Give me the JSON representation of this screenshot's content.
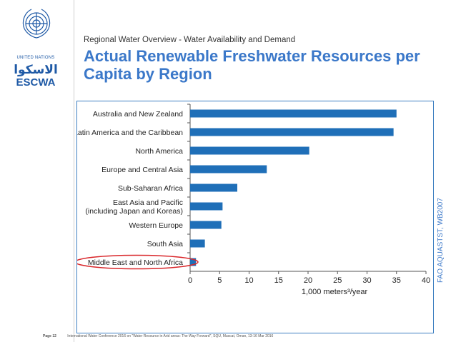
{
  "org": {
    "un_label": "UNITED NATIONS",
    "arabic_name": "الاسكوا",
    "name": "ESCWA"
  },
  "header": {
    "subtitle": "Regional Water Overview - Water Availability and Demand",
    "title": "Actual Renewable Freshwater Resources per Capita by Region"
  },
  "source": "FAO AQUASTST, WB2007",
  "footer": {
    "page": "Page 12",
    "text": "International Water Conference 2016 on \"Water Resource in Arid areas: The Way Forward\", SQU, Muscat, Oman, 13-16 Mar 2016"
  },
  "colors": {
    "bar": "#1f6fb8",
    "accent": "#3b78c9",
    "highlight": "#d9262a"
  },
  "chart_data": {
    "type": "bar",
    "orientation": "horizontal",
    "categories": [
      "Australia and New Zealand",
      "Latin America and the Caribbean",
      "North America",
      "Europe and Central Asia",
      "Sub-Saharan Africa",
      "East Asia and Pacific (including Japan and Koreas)",
      "Western Europe",
      "South Asia",
      "Middle East and North Africa"
    ],
    "category_lines": [
      [
        "Australia and New Zealand"
      ],
      [
        "Latin America and the Caribbean"
      ],
      [
        "North America"
      ],
      [
        "Europe and Central Asia"
      ],
      [
        "Sub-Saharan Africa"
      ],
      [
        "East Asia and Pacific",
        "(including Japan and Koreas)"
      ],
      [
        "Western Europe"
      ],
      [
        "South Asia"
      ],
      [
        "Middle East and North Africa"
      ]
    ],
    "values": [
      35,
      34.5,
      20.2,
      13,
      8,
      5.5,
      5.3,
      2.5,
      1
    ],
    "xlim": [
      0,
      40
    ],
    "xticks": [
      0,
      5,
      10,
      15,
      20,
      25,
      30,
      35,
      40
    ],
    "xlabel": "1,000 meters³/year",
    "ylabel": "",
    "grid": false,
    "highlighted_category": "Middle East and North Africa"
  }
}
